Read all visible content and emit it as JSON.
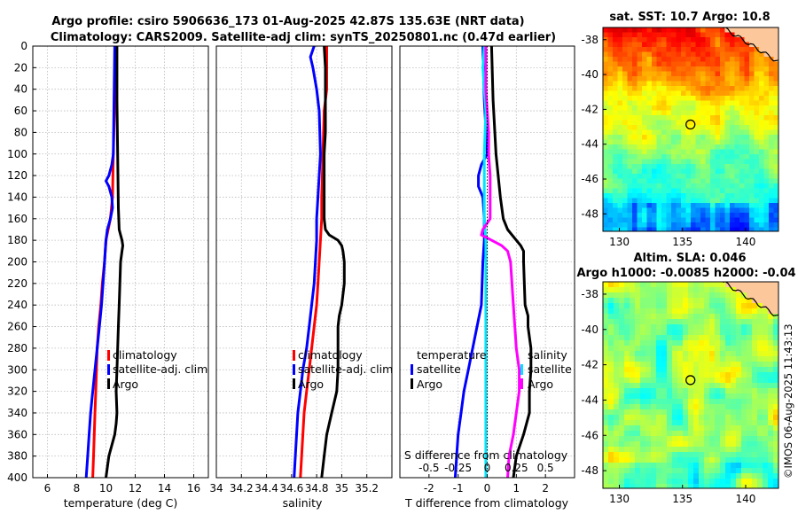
{
  "titles": {
    "line1": "Argo profile: csiro 5906636_173 01-Aug-2025 42.87S 135.63E (NRT data)",
    "line2": "Climatology: CARS2009. Satellite-adj clim: synTS_20250801.nc (0.47d earlier)"
  },
  "colors": {
    "climatology": "#ff0000",
    "satellite": "#0000ff",
    "argo": "#000000",
    "s_satellite": "#00e5ff",
    "s_argo": "#ff00ff",
    "land": "#fcc79a"
  },
  "chart_data": [
    {
      "type": "line",
      "panel": "temperature",
      "xlabel": "temperature (deg C)",
      "ylabel": "",
      "xlim": [
        5,
        17
      ],
      "ylim": [
        400,
        0
      ],
      "xticks": [
        6,
        8,
        10,
        12,
        14,
        16
      ],
      "yticks": [
        0,
        20,
        40,
        60,
        80,
        100,
        120,
        140,
        160,
        180,
        200,
        220,
        240,
        260,
        280,
        300,
        320,
        340,
        360,
        380,
        400
      ],
      "series": [
        {
          "name": "climatology",
          "color": "#ff0000",
          "depth": [
            0,
            50,
            100,
            140,
            160,
            180,
            200,
            220,
            240,
            260,
            280,
            300,
            320,
            340,
            360,
            380,
            400
          ],
          "values": [
            10.7,
            10.6,
            10.5,
            10.45,
            10.3,
            10.0,
            9.9,
            9.75,
            9.65,
            9.5,
            9.4,
            9.35,
            9.3,
            9.25,
            9.2,
            9.15,
            9.1
          ]
        },
        {
          "name": "satellite-adj. clim",
          "color": "#0000ff",
          "depth": [
            0,
            50,
            100,
            110,
            120,
            125,
            130,
            140,
            150,
            160,
            170,
            180,
            200,
            220,
            240,
            260,
            280,
            300,
            320,
            340,
            360,
            380,
            400
          ],
          "values": [
            10.6,
            10.55,
            10.5,
            10.4,
            10.2,
            10.0,
            10.2,
            10.4,
            10.45,
            10.3,
            10.1,
            10.0,
            9.9,
            9.8,
            9.7,
            9.55,
            9.4,
            9.25,
            9.1,
            8.95,
            8.85,
            8.75,
            8.65
          ]
        },
        {
          "name": "Argo",
          "color": "#000000",
          "depth": [
            0,
            50,
            100,
            150,
            170,
            175,
            180,
            185,
            190,
            200,
            220,
            240,
            260,
            280,
            300,
            320,
            340,
            350,
            360,
            370,
            380,
            400
          ],
          "values": [
            10.75,
            10.75,
            10.8,
            10.85,
            10.9,
            11.0,
            11.1,
            11.15,
            11.1,
            11.0,
            10.95,
            10.9,
            10.85,
            10.8,
            10.75,
            10.7,
            10.75,
            10.7,
            10.6,
            10.4,
            10.2,
            10.0
          ]
        }
      ]
    },
    {
      "type": "line",
      "panel": "salinity",
      "xlabel": "salinity",
      "xlim": [
        34.0,
        35.4
      ],
      "ylim": [
        400,
        0
      ],
      "xticks": [
        34,
        34.2,
        34.4,
        34.6,
        34.8,
        35,
        35.2
      ],
      "series": [
        {
          "name": "climatology",
          "color": "#ff0000",
          "depth": [
            0,
            40,
            60,
            100,
            140,
            160,
            180,
            200,
            220,
            240,
            260,
            280,
            300,
            320,
            340,
            360,
            380,
            400
          ],
          "values": [
            34.88,
            34.88,
            34.86,
            34.85,
            34.84,
            34.84,
            34.83,
            34.82,
            34.81,
            34.8,
            34.78,
            34.76,
            34.74,
            34.72,
            34.7,
            34.69,
            34.68,
            34.67
          ]
        },
        {
          "name": "satellite-adj. clim",
          "color": "#0000ff",
          "depth": [
            0,
            10,
            20,
            40,
            60,
            100,
            120,
            140,
            160,
            180,
            200,
            220,
            240,
            260,
            280,
            300,
            320,
            340,
            360,
            380,
            400
          ],
          "values": [
            34.78,
            34.75,
            34.77,
            34.8,
            34.82,
            34.83,
            34.82,
            34.81,
            34.8,
            34.8,
            34.79,
            34.78,
            34.76,
            34.74,
            34.72,
            34.69,
            34.67,
            34.65,
            34.64,
            34.63,
            34.62
          ]
        },
        {
          "name": "Argo",
          "color": "#000000",
          "depth": [
            0,
            20,
            40,
            60,
            80,
            100,
            120,
            140,
            160,
            170,
            175,
            180,
            185,
            190,
            200,
            220,
            240,
            250,
            260,
            280,
            300,
            320,
            340,
            360,
            380,
            400
          ],
          "values": [
            34.86,
            34.87,
            34.87,
            34.87,
            34.87,
            34.86,
            34.86,
            34.86,
            34.86,
            34.87,
            34.9,
            34.97,
            35.0,
            35.01,
            35.02,
            35.02,
            35.0,
            34.98,
            34.97,
            34.97,
            34.97,
            34.96,
            34.92,
            34.88,
            34.86,
            34.84
          ]
        }
      ]
    },
    {
      "type": "line",
      "panel": "difference",
      "xlabel": "T difference from climatology",
      "secondary_xlabel": "S difference from climatology",
      "xlim": [
        -3,
        3
      ],
      "ylim": [
        400,
        0
      ],
      "xticks": [
        -2,
        -1,
        0,
        1,
        2
      ],
      "secondary_xticks": [
        "-0.5",
        "-0.25",
        "0",
        "0.25",
        "0.5"
      ],
      "legend_left_title": "temperature",
      "legend_right_title": "salinity",
      "series": [
        {
          "name": "T satellite",
          "color": "#0000ff",
          "depth": [
            0,
            50,
            100,
            110,
            120,
            130,
            140,
            160,
            180,
            200,
            240,
            260,
            280,
            300,
            320,
            340,
            360,
            380,
            400
          ],
          "values": [
            -0.15,
            -0.1,
            0,
            -0.2,
            -0.3,
            -0.3,
            -0.15,
            -0.1,
            -0.1,
            -0.15,
            -0.2,
            -0.35,
            -0.5,
            -0.65,
            -0.8,
            -0.9,
            -1.0,
            -1.05,
            -1.1
          ]
        },
        {
          "name": "T Argo",
          "color": "#000000",
          "depth": [
            0,
            50,
            100,
            140,
            160,
            170,
            175,
            180,
            185,
            190,
            200,
            240,
            250,
            260,
            280,
            300,
            320,
            340,
            360,
            380,
            400
          ],
          "values": [
            0.15,
            0.2,
            0.3,
            0.45,
            0.55,
            0.7,
            0.85,
            1.0,
            1.15,
            1.25,
            1.25,
            1.3,
            1.4,
            1.4,
            1.5,
            1.5,
            1.45,
            1.45,
            1.25,
            1.0,
            0.9
          ]
        },
        {
          "name": "S satellite",
          "color": "#00e5ff",
          "depth": [
            0,
            20,
            40,
            60,
            100,
            140,
            160,
            180,
            200,
            220,
            240,
            260,
            280,
            300,
            320,
            340,
            360,
            380,
            400
          ],
          "values": [
            -0.1,
            -0.15,
            -0.1,
            -0.05,
            -0.1,
            -0.1,
            -0.1,
            -0.05,
            -0.05,
            -0.05,
            -0.05,
            -0.05,
            -0.05,
            -0.05,
            -0.05,
            -0.05,
            -0.05,
            -0.05,
            -0.05
          ]
        },
        {
          "name": "S Argo",
          "color": "#ff00ff",
          "depth": [
            0,
            40,
            80,
            100,
            120,
            140,
            160,
            170,
            175,
            180,
            185,
            190,
            200,
            240,
            280,
            300,
            320,
            340,
            360,
            380,
            400
          ],
          "values": [
            -0.05,
            -0.05,
            0.05,
            0.05,
            0.1,
            0.1,
            0.1,
            -0.15,
            -0.2,
            0.15,
            0.5,
            0.7,
            0.8,
            0.9,
            1.0,
            1.1,
            1.1,
            1.0,
            0.9,
            0.75,
            0.7
          ]
        }
      ]
    },
    {
      "type": "heatmap",
      "panel": "sst_map",
      "title": "sat. SST: 10.7 Argo: 10.8",
      "xticks": [
        130,
        135,
        140
      ],
      "yticks": [
        -38,
        -40,
        -42,
        -44,
        -46,
        -48
      ],
      "xlim": [
        128.7,
        142.6
      ],
      "ylim": [
        -49,
        -37.3
      ],
      "argo_position": [
        135.63,
        -42.87
      ]
    },
    {
      "type": "heatmap",
      "panel": "sla_map",
      "title": "Altim. SLA: 0.046",
      "subtitle": "Argo h1000: -0.0085 h2000: -0.04",
      "xticks": [
        130,
        135,
        140
      ],
      "yticks": [
        -38,
        -40,
        -42,
        -44,
        -46,
        -48
      ],
      "xlim": [
        128.7,
        142.6
      ],
      "ylim": [
        -49,
        -37.3
      ],
      "argo_position": [
        135.63,
        -42.87
      ]
    }
  ],
  "legends": {
    "climatology": "climatology",
    "satellite_adj": "satellite-adj. clim",
    "argo": "Argo",
    "satellite": "satellite"
  },
  "stamp": "©IMOS 06-Aug-2025 11:43:13"
}
